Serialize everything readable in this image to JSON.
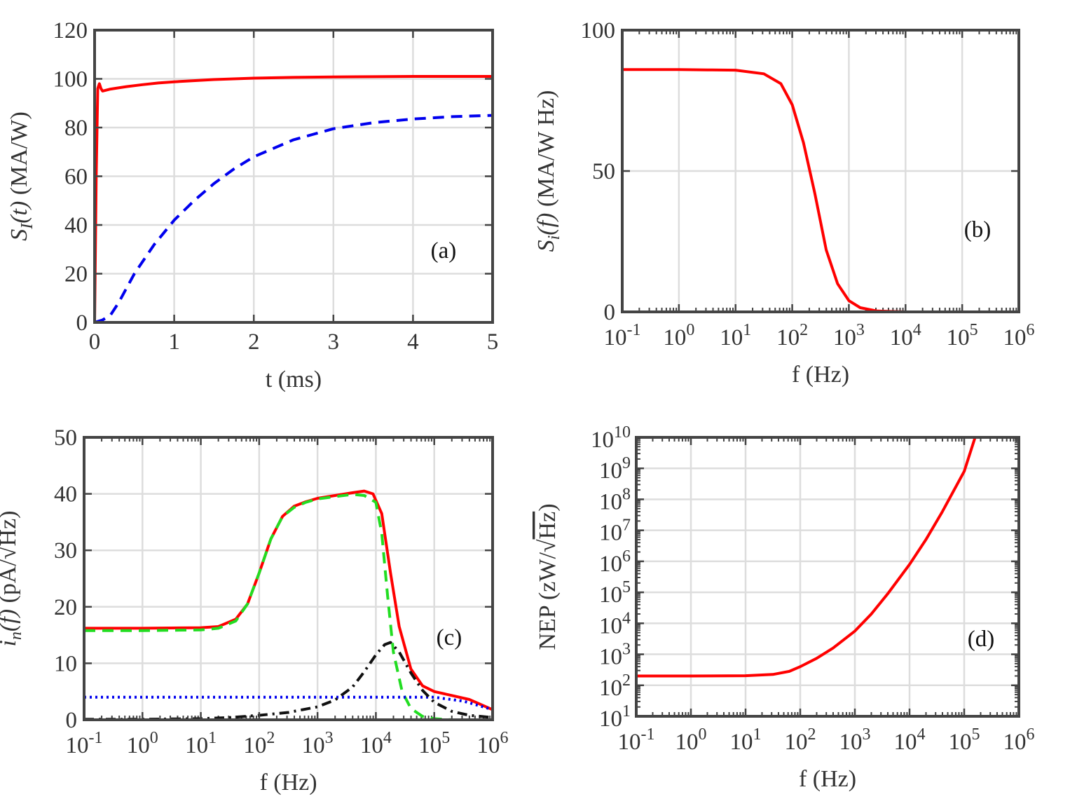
{
  "chart_data": [
    {
      "id": "a",
      "type": "line",
      "panel_label": "(a)",
      "xlabel": "t (ms)",
      "ylabel_parts": [
        "S",
        "I",
        "(t)",
        " (MA/W)"
      ],
      "xscale": "linear",
      "yscale": "linear",
      "xlim": [
        0,
        5
      ],
      "ylim": [
        0,
        120
      ],
      "xticks": [
        0,
        1,
        2,
        3,
        4,
        5
      ],
      "xtick_labels": [
        "0",
        "1",
        "2",
        "3",
        "4",
        "5"
      ],
      "yticks": [
        0,
        20,
        40,
        60,
        80,
        100,
        120
      ],
      "ytick_labels": [
        "0",
        "20",
        "40",
        "60",
        "80",
        "100",
        "120"
      ],
      "grid": true,
      "series": [
        {
          "name": "solid red",
          "color": "#ff0000",
          "style": "solid",
          "x": [
            0,
            0.02,
            0.04,
            0.06,
            0.08,
            0.1,
            0.2,
            0.4,
            0.6,
            0.8,
            1,
            1.5,
            2,
            2.5,
            3,
            3.5,
            4,
            4.5,
            5
          ],
          "y": [
            0,
            60,
            96,
            98,
            96,
            95,
            95.8,
            96.8,
            97.6,
            98.3,
            98.8,
            99.7,
            100.3,
            100.6,
            100.8,
            100.9,
            101,
            101,
            101
          ]
        },
        {
          "name": "dashed blue",
          "color": "#0000ee",
          "style": "dashed",
          "x": [
            0,
            0.1,
            0.2,
            0.3,
            0.5,
            0.75,
            1,
            1.25,
            1.5,
            1.75,
            2,
            2.5,
            3,
            3.5,
            4,
            4.5,
            5
          ],
          "y": [
            0,
            1,
            3,
            8,
            20,
            32,
            42,
            50,
            57,
            63,
            68,
            75,
            79.5,
            82,
            83.5,
            84.5,
            85
          ]
        }
      ]
    },
    {
      "id": "b",
      "type": "line",
      "panel_label": "(b)",
      "xlabel": "f (Hz)",
      "ylabel_parts": [
        "S",
        "i",
        "(f)",
        " (MA/W Hz)"
      ],
      "xscale": "log",
      "yscale": "linear",
      "xlim": [
        -1,
        6
      ],
      "ylim": [
        0,
        100
      ],
      "xticks": [
        -1,
        0,
        1,
        2,
        3,
        4,
        5,
        6
      ],
      "xtick_labels": [
        "10-1",
        "100",
        "101",
        "102",
        "103",
        "104",
        "105",
        "106"
      ],
      "yticks": [
        0,
        50,
        100
      ],
      "ytick_labels": [
        "0",
        "50",
        "100"
      ],
      "grid": true,
      "series": [
        {
          "name": "solid red",
          "color": "#ff0000",
          "style": "solid",
          "log10_x": [
            -1,
            0,
            0.5,
            1,
            1.5,
            1.8,
            2,
            2.2,
            2.4,
            2.6,
            2.8,
            3,
            3.2,
            3.5,
            4,
            5,
            6
          ],
          "y": [
            86,
            86,
            85.9,
            85.8,
            84.5,
            81,
            73.5,
            60,
            42,
            22,
            10,
            4,
            1.5,
            0.3,
            0,
            0,
            0
          ]
        }
      ]
    },
    {
      "id": "c",
      "type": "line",
      "panel_label": "(c)",
      "xlabel": "f (Hz)",
      "ylabel_parts": [
        "i",
        "n",
        "(f)",
        " (pA/",
        "Hz",
        ")"
      ],
      "xscale": "log",
      "yscale": "linear",
      "xlim": [
        -1,
        6
      ],
      "ylim": [
        0,
        50
      ],
      "xticks": [
        -1,
        0,
        1,
        2,
        3,
        4,
        5,
        6
      ],
      "xtick_labels": [
        "10-1",
        "100",
        "101",
        "102",
        "103",
        "104",
        "105",
        "106"
      ],
      "yticks": [
        0,
        10,
        20,
        30,
        40,
        50
      ],
      "ytick_labels": [
        "0",
        "10",
        "20",
        "30",
        "40",
        "50"
      ],
      "grid": true,
      "series": [
        {
          "name": "solid red",
          "color": "#ff0000",
          "style": "solid",
          "log10_x": [
            -1,
            0,
            1,
            1.3,
            1.6,
            1.8,
            2,
            2.2,
            2.4,
            2.6,
            2.8,
            3,
            3.3,
            3.6,
            3.8,
            3.95,
            4.1,
            4.25,
            4.4,
            4.6,
            4.8,
            5,
            5.3,
            5.6,
            6
          ],
          "y": [
            16.2,
            16.2,
            16.3,
            16.5,
            17.8,
            20.5,
            26,
            32,
            36,
            37.8,
            38.6,
            39.2,
            39.7,
            40.2,
            40.5,
            40,
            36.5,
            26,
            16.5,
            9,
            6,
            5,
            4.3,
            3.6,
            1.8
          ]
        },
        {
          "name": "dashed green",
          "color": "#22dd22",
          "style": "dashed",
          "log10_x": [
            -1,
            0,
            1,
            1.3,
            1.6,
            1.8,
            2,
            2.2,
            2.4,
            2.6,
            2.8,
            3,
            3.3,
            3.6,
            3.8,
            4,
            4.1,
            4.2,
            4.3,
            4.45,
            4.6,
            4.8,
            5,
            5.3,
            6
          ],
          "y": [
            15.8,
            15.8,
            15.9,
            16.2,
            17.5,
            20.5,
            26,
            32,
            36,
            37.6,
            38.5,
            39.1,
            39.5,
            39.9,
            39.7,
            38.5,
            33,
            22,
            12,
            5,
            2,
            0.6,
            0.2,
            0,
            0
          ]
        },
        {
          "name": "dotted blue",
          "color": "#0000ee",
          "style": "dotted",
          "log10_x": [
            -1,
            5,
            5.5,
            6
          ],
          "y": [
            4,
            4,
            3.3,
            1.8
          ]
        },
        {
          "name": "dash-dot black",
          "color": "#111111",
          "style": "dashdot",
          "log10_x": [
            -1,
            0,
            1,
            1.5,
            2,
            2.5,
            3,
            3.3,
            3.6,
            3.8,
            4,
            4.15,
            4.25,
            4.4,
            4.6,
            4.8,
            5,
            5.3,
            5.6,
            6
          ],
          "y": [
            0.1,
            0.1,
            0.2,
            0.4,
            0.8,
            1.3,
            2.3,
            3.5,
            5.8,
            8.5,
            11.5,
            13.3,
            13.7,
            12,
            8.3,
            5.2,
            3.1,
            1.5,
            0.8,
            0.4
          ]
        }
      ]
    },
    {
      "id": "d",
      "type": "line",
      "panel_label": "(d)",
      "xlabel": "f (Hz)",
      "ylabel_parts": [
        "NEP",
        "  (zW/",
        "Hz",
        ")"
      ],
      "xscale": "log",
      "yscale": "log",
      "xlim": [
        -1,
        6
      ],
      "ylim": [
        1,
        10
      ],
      "xticks": [
        -1,
        0,
        1,
        2,
        3,
        4,
        5,
        6
      ],
      "xtick_labels": [
        "10-1",
        "100",
        "101",
        "102",
        "103",
        "104",
        "105",
        "106"
      ],
      "yticks": [
        1,
        2,
        3,
        4,
        5,
        6,
        7,
        8,
        9,
        10
      ],
      "ytick_labels": [
        "101",
        "102",
        "103",
        "104",
        "105",
        "106",
        "107",
        "108",
        "109",
        "1010"
      ],
      "grid": true,
      "series": [
        {
          "name": "solid red",
          "color": "#ff0000",
          "style": "solid",
          "log10_x": [
            -1,
            0,
            1,
            1.5,
            1.8,
            2,
            2.3,
            2.6,
            3,
            3.3,
            3.6,
            4,
            4.3,
            4.6,
            5,
            5.2
          ],
          "log10_y": [
            2.3,
            2.3,
            2.31,
            2.35,
            2.45,
            2.6,
            2.87,
            3.2,
            3.75,
            4.3,
            4.95,
            5.9,
            6.7,
            7.6,
            8.9,
            10
          ]
        }
      ]
    }
  ],
  "colors": {
    "axis": "#444444",
    "grid": "#dddddd",
    "text": "#333333"
  }
}
